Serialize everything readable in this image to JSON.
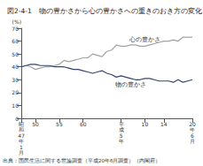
{
  "chart_data": {
    "type": "line",
    "title": "図2-4-1　物の豊かさから心の豊かさへの重きのおき方の変化",
    "y_label": "(%)",
    "source": "出典：国民生活に関する世論調査（平成20年6月調査）（内閣府）",
    "categories": [
      "昭和47年1月",
      null,
      null,
      "50",
      null,
      null,
      null,
      null,
      "55",
      null,
      null,
      null,
      null,
      "60",
      null,
      null,
      null,
      null,
      null,
      null,
      null,
      "平成5年",
      null,
      null,
      null,
      null,
      "10",
      null,
      null,
      null,
      "14",
      null,
      null,
      null,
      null,
      null,
      "20年6月"
    ],
    "series": [
      {
        "name": "心の豊かさ",
        "color": "#a3a3a3",
        "values": [
          40,
          41,
          40,
          38,
          39,
          40,
          40,
          41,
          42,
          45,
          44,
          45,
          46,
          47,
          47,
          50,
          49,
          48,
          52,
          53,
          57,
          56,
          56,
          57,
          57,
          56,
          56,
          57,
          58,
          59,
          60,
          60,
          61,
          60,
          63,
          63,
          63
        ]
      },
      {
        "name": "物の豊かさ",
        "color": "#34466b",
        "values": [
          40,
          41,
          42,
          42,
          41,
          41,
          41,
          40,
          40,
          40,
          39,
          38,
          38,
          37,
          36,
          35,
          36,
          37,
          35,
          34,
          32,
          33,
          32,
          31,
          30,
          30,
          31,
          31,
          30,
          29,
          29,
          29,
          28,
          30,
          28,
          29,
          30
        ]
      }
    ],
    "ylim": [
      0,
      70
    ],
    "yticks": [
      0,
      10,
      20,
      30,
      40,
      50,
      60,
      70
    ],
    "grid": false,
    "legend": false
  }
}
